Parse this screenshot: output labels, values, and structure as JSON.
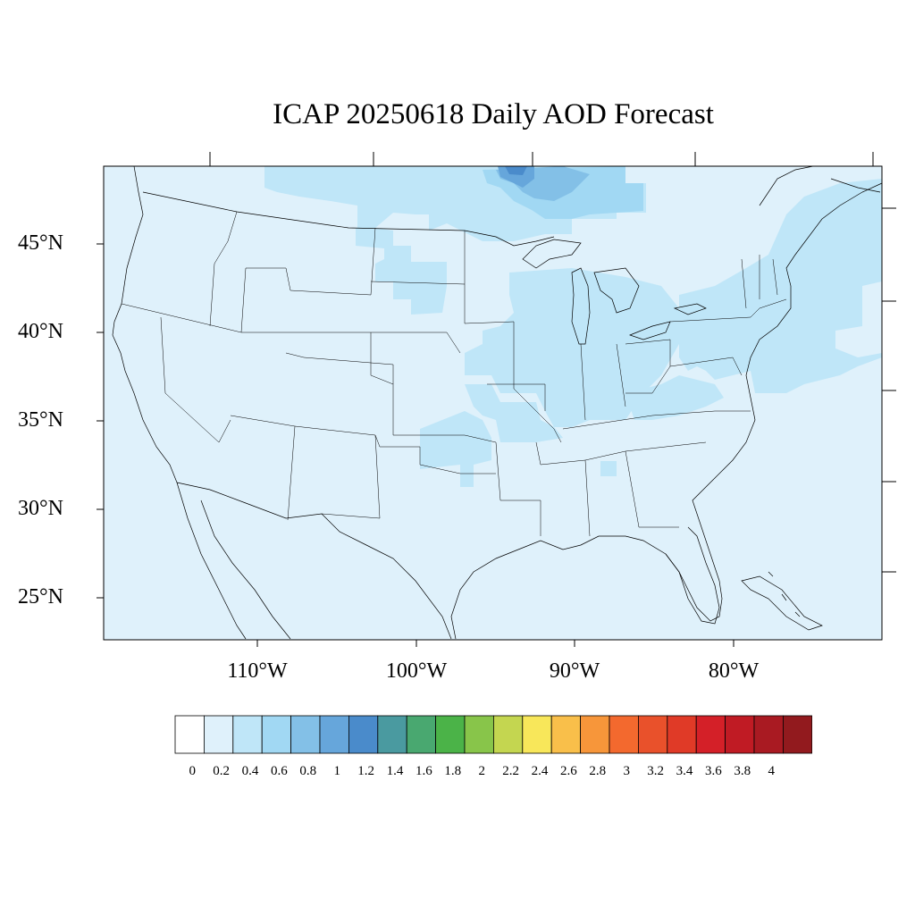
{
  "title": "ICAP 20250618 Daily AOD Forecast",
  "lat_labels": [
    "45°N",
    "40°N",
    "35°N",
    "30°N",
    "25°N"
  ],
  "lon_labels": [
    "110°W",
    "100°W",
    "90°W",
    "80°W"
  ],
  "colorbar": {
    "labels": [
      "0",
      "0.2",
      "0.4",
      "0.6",
      "0.8",
      "1",
      "1.2",
      "1.4",
      "1.6",
      "1.8",
      "2",
      "2.2",
      "2.4",
      "2.6",
      "2.8",
      "3",
      "3.2",
      "3.4",
      "3.6",
      "3.8",
      "4"
    ],
    "colors": [
      "#ffffff",
      "#dff1fb",
      "#bfe6f8",
      "#a1d8f3",
      "#83c0e7",
      "#66a6db",
      "#4a8bcb",
      "#4a9aa0",
      "#49a870",
      "#4bb348",
      "#88c54a",
      "#c4d650",
      "#f8e75a",
      "#f9bf4a",
      "#f7963a",
      "#f3692e",
      "#e9512b",
      "#e03a27",
      "#d42028",
      "#c01b24",
      "#a91a22",
      "#921a1e"
    ]
  },
  "map_colors": {
    "background": "#dff1fb",
    "level_0_4": "#bfe6f8",
    "level_0_6": "#a1d8f3",
    "level_0_8": "#83c0e7",
    "level_1_0": "#66a6db",
    "level_1_2": "#4a8bcb"
  }
}
